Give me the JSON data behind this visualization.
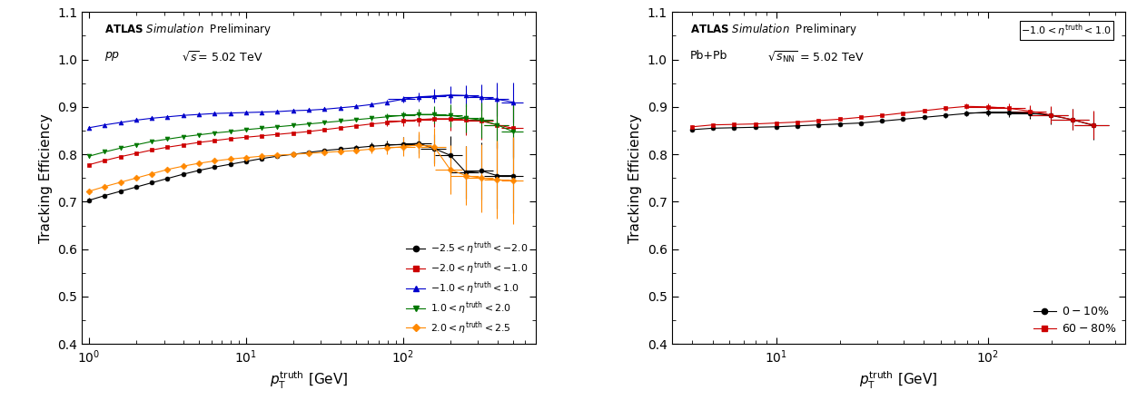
{
  "left_panel": {
    "series": [
      {
        "label": "-2.5 < $\\eta^{\\mathrm{truth}}$ < -2.0",
        "color": "#000000",
        "marker": "o",
        "pt": [
          1.0,
          1.26,
          1.585,
          2.0,
          2.51,
          3.16,
          3.98,
          5.01,
          6.31,
          7.94,
          10.0,
          12.59,
          15.85,
          19.95,
          25.12,
          31.62,
          39.81,
          50.12,
          63.1,
          79.43,
          100.0,
          125.9,
          158.5,
          199.5,
          251.2,
          316.2,
          398.1,
          501.2
        ],
        "eff": [
          0.703,
          0.713,
          0.722,
          0.731,
          0.74,
          0.749,
          0.758,
          0.766,
          0.773,
          0.779,
          0.785,
          0.791,
          0.796,
          0.8,
          0.804,
          0.808,
          0.811,
          0.814,
          0.817,
          0.819,
          0.821,
          0.823,
          0.812,
          0.798,
          0.762,
          0.765,
          0.755,
          0.755
        ],
        "xerr": [
          0.0,
          0.0,
          0.0,
          0.0,
          0.0,
          0.0,
          0.0,
          0.0,
          0.0,
          0.0,
          0.0,
          0.0,
          0.0,
          0.0,
          0.0,
          0.0,
          0.0,
          0.0,
          0.0,
          0.0,
          20.0,
          25.0,
          30.0,
          40.0,
          50.0,
          60.0,
          70.0,
          80.0
        ],
        "yerr": [
          0.005,
          0.004,
          0.004,
          0.003,
          0.003,
          0.003,
          0.003,
          0.003,
          0.003,
          0.003,
          0.003,
          0.003,
          0.003,
          0.003,
          0.003,
          0.004,
          0.005,
          0.006,
          0.008,
          0.01,
          0.015,
          0.02,
          0.03,
          0.04,
          0.055,
          0.06,
          0.07,
          0.08
        ]
      },
      {
        "label": "-2.0 < $\\eta^{\\mathrm{truth}}$ < -1.0",
        "color": "#cc0000",
        "marker": "s",
        "pt": [
          1.0,
          1.26,
          1.585,
          2.0,
          2.51,
          3.16,
          3.98,
          5.01,
          6.31,
          7.94,
          10.0,
          12.59,
          15.85,
          19.95,
          25.12,
          31.62,
          39.81,
          50.12,
          63.1,
          79.43,
          100.0,
          125.9,
          158.5,
          199.5,
          251.2,
          316.2,
          398.1,
          501.2
        ],
        "eff": [
          0.778,
          0.787,
          0.795,
          0.802,
          0.809,
          0.815,
          0.82,
          0.825,
          0.829,
          0.833,
          0.836,
          0.839,
          0.842,
          0.845,
          0.848,
          0.852,
          0.856,
          0.86,
          0.864,
          0.867,
          0.87,
          0.873,
          0.875,
          0.875,
          0.872,
          0.87,
          0.862,
          0.855
        ],
        "xerr": [
          0.0,
          0.0,
          0.0,
          0.0,
          0.0,
          0.0,
          0.0,
          0.0,
          0.0,
          0.0,
          0.0,
          0.0,
          0.0,
          0.0,
          0.0,
          0.0,
          0.0,
          0.0,
          0.0,
          0.0,
          20.0,
          25.0,
          30.0,
          40.0,
          50.0,
          60.0,
          70.0,
          80.0
        ],
        "yerr": [
          0.004,
          0.003,
          0.003,
          0.002,
          0.002,
          0.002,
          0.002,
          0.002,
          0.002,
          0.002,
          0.002,
          0.002,
          0.002,
          0.002,
          0.002,
          0.003,
          0.003,
          0.004,
          0.005,
          0.007,
          0.01,
          0.014,
          0.018,
          0.025,
          0.032,
          0.04,
          0.05,
          0.06
        ]
      },
      {
        "label": "-1.0 < $\\eta^{\\mathrm{truth}}$ < 1.0",
        "color": "#0000cc",
        "marker": "^",
        "pt": [
          1.0,
          1.26,
          1.585,
          2.0,
          2.51,
          3.16,
          3.98,
          5.01,
          6.31,
          7.94,
          10.0,
          12.59,
          15.85,
          19.95,
          25.12,
          31.62,
          39.81,
          50.12,
          63.1,
          79.43,
          100.0,
          125.9,
          158.5,
          199.5,
          251.2,
          316.2,
          398.1,
          501.2
        ],
        "eff": [
          0.856,
          0.862,
          0.867,
          0.872,
          0.876,
          0.879,
          0.882,
          0.884,
          0.886,
          0.887,
          0.888,
          0.889,
          0.89,
          0.892,
          0.893,
          0.895,
          0.898,
          0.901,
          0.905,
          0.91,
          0.916,
          0.921,
          0.923,
          0.925,
          0.924,
          0.92,
          0.916,
          0.91
        ],
        "xerr": [
          0.0,
          0.0,
          0.0,
          0.0,
          0.0,
          0.0,
          0.0,
          0.0,
          0.0,
          0.0,
          0.0,
          0.0,
          0.0,
          0.0,
          0.0,
          0.0,
          0.0,
          0.0,
          0.0,
          0.0,
          20.0,
          25.0,
          30.0,
          40.0,
          50.0,
          60.0,
          70.0,
          80.0
        ],
        "yerr": [
          0.003,
          0.002,
          0.002,
          0.002,
          0.001,
          0.001,
          0.001,
          0.001,
          0.001,
          0.001,
          0.001,
          0.001,
          0.001,
          0.001,
          0.001,
          0.002,
          0.002,
          0.003,
          0.004,
          0.005,
          0.007,
          0.01,
          0.014,
          0.018,
          0.022,
          0.028,
          0.035,
          0.042
        ]
      },
      {
        "label": "1.0 < $\\eta^{\\mathrm{truth}}$ < 2.0",
        "color": "#007700",
        "marker": "v",
        "pt": [
          1.0,
          1.26,
          1.585,
          2.0,
          2.51,
          3.16,
          3.98,
          5.01,
          6.31,
          7.94,
          10.0,
          12.59,
          15.85,
          19.95,
          25.12,
          31.62,
          39.81,
          50.12,
          63.1,
          79.43,
          100.0,
          125.9,
          158.5,
          199.5,
          251.2,
          316.2,
          398.1,
          501.2
        ],
        "eff": [
          0.796,
          0.805,
          0.813,
          0.82,
          0.827,
          0.832,
          0.837,
          0.841,
          0.845,
          0.848,
          0.852,
          0.855,
          0.858,
          0.861,
          0.864,
          0.867,
          0.87,
          0.873,
          0.876,
          0.879,
          0.882,
          0.884,
          0.884,
          0.882,
          0.877,
          0.872,
          0.862,
          0.848
        ],
        "xerr": [
          0.0,
          0.0,
          0.0,
          0.0,
          0.0,
          0.0,
          0.0,
          0.0,
          0.0,
          0.0,
          0.0,
          0.0,
          0.0,
          0.0,
          0.0,
          0.0,
          0.0,
          0.0,
          0.0,
          0.0,
          20.0,
          25.0,
          30.0,
          40.0,
          50.0,
          60.0,
          70.0,
          80.0
        ],
        "yerr": [
          0.004,
          0.003,
          0.003,
          0.002,
          0.002,
          0.002,
          0.002,
          0.002,
          0.002,
          0.002,
          0.002,
          0.002,
          0.002,
          0.002,
          0.002,
          0.003,
          0.003,
          0.004,
          0.005,
          0.007,
          0.009,
          0.012,
          0.018,
          0.024,
          0.03,
          0.038,
          0.048,
          0.058
        ]
      },
      {
        "label": "2.0 < $\\eta^{\\mathrm{truth}}$ < 2.5",
        "color": "#ff8800",
        "marker": "D",
        "pt": [
          1.0,
          1.26,
          1.585,
          2.0,
          2.51,
          3.16,
          3.98,
          5.01,
          6.31,
          7.94,
          10.0,
          12.59,
          15.85,
          19.95,
          25.12,
          31.62,
          39.81,
          50.12,
          63.1,
          79.43,
          100.0,
          125.9,
          158.5,
          199.5,
          251.2,
          316.2,
          398.1,
          501.2
        ],
        "eff": [
          0.722,
          0.732,
          0.741,
          0.75,
          0.759,
          0.768,
          0.775,
          0.781,
          0.786,
          0.79,
          0.793,
          0.796,
          0.798,
          0.8,
          0.802,
          0.804,
          0.806,
          0.808,
          0.811,
          0.813,
          0.816,
          0.82,
          0.815,
          0.768,
          0.755,
          0.75,
          0.746,
          0.745
        ],
        "xerr": [
          0.0,
          0.0,
          0.0,
          0.0,
          0.0,
          0.0,
          0.0,
          0.0,
          0.0,
          0.0,
          0.0,
          0.0,
          0.0,
          0.0,
          0.0,
          0.0,
          0.0,
          0.0,
          0.0,
          0.0,
          20.0,
          25.0,
          30.0,
          40.0,
          50.0,
          60.0,
          70.0,
          80.0
        ],
        "yerr": [
          0.005,
          0.004,
          0.004,
          0.003,
          0.003,
          0.003,
          0.003,
          0.003,
          0.003,
          0.003,
          0.003,
          0.003,
          0.003,
          0.003,
          0.003,
          0.004,
          0.005,
          0.006,
          0.009,
          0.012,
          0.02,
          0.028,
          0.04,
          0.052,
          0.062,
          0.072,
          0.082,
          0.092
        ]
      }
    ],
    "xlim": [
      0.9,
      700
    ],
    "ylim": [
      0.4,
      1.1
    ],
    "yticks": [
      0.4,
      0.5,
      0.6,
      0.7,
      0.8,
      0.9,
      1.0,
      1.1
    ],
    "xlabel": "$p_{\\mathrm{T}}^{\\mathrm{truth}}$ [GeV]",
    "ylabel": "Tracking Efficiency"
  },
  "right_panel": {
    "series": [
      {
        "label": "0 - 10%",
        "color": "#000000",
        "marker": "o",
        "pt": [
          4.0,
          5.01,
          6.31,
          7.94,
          10.0,
          12.59,
          15.85,
          19.95,
          25.12,
          31.62,
          39.81,
          50.12,
          63.1,
          79.43,
          100.0,
          125.9,
          158.5,
          199.5,
          251.2,
          316.2
        ],
        "eff": [
          0.852,
          0.855,
          0.856,
          0.857,
          0.858,
          0.86,
          0.862,
          0.864,
          0.866,
          0.87,
          0.874,
          0.878,
          0.882,
          0.886,
          0.889,
          0.889,
          0.887,
          0.882,
          0.873,
          0.861
        ],
        "xerr": [
          0.0,
          0.0,
          0.0,
          0.0,
          0.0,
          0.0,
          0.0,
          0.0,
          0.0,
          0.0,
          0.0,
          0.0,
          0.0,
          0.0,
          20.0,
          25.0,
          30.0,
          40.0,
          50.0,
          60.0
        ],
        "yerr": [
          0.004,
          0.003,
          0.003,
          0.003,
          0.003,
          0.002,
          0.002,
          0.002,
          0.002,
          0.003,
          0.003,
          0.004,
          0.005,
          0.006,
          0.008,
          0.01,
          0.013,
          0.018,
          0.022,
          0.03
        ]
      },
      {
        "label": "60 - 80%",
        "color": "#cc0000",
        "marker": "s",
        "pt": [
          4.0,
          5.01,
          6.31,
          7.94,
          10.0,
          12.59,
          15.85,
          19.95,
          25.12,
          31.62,
          39.81,
          50.12,
          63.1,
          79.43,
          100.0,
          125.9,
          158.5,
          199.5,
          251.2,
          316.2
        ],
        "eff": [
          0.858,
          0.862,
          0.863,
          0.864,
          0.866,
          0.868,
          0.871,
          0.874,
          0.878,
          0.882,
          0.887,
          0.892,
          0.897,
          0.901,
          0.9,
          0.897,
          0.891,
          0.883,
          0.873,
          0.862
        ],
        "xerr": [
          0.0,
          0.0,
          0.0,
          0.0,
          0.0,
          0.0,
          0.0,
          0.0,
          0.0,
          0.0,
          0.0,
          0.0,
          0.0,
          0.0,
          20.0,
          25.0,
          30.0,
          40.0,
          50.0,
          60.0
        ],
        "yerr": [
          0.004,
          0.003,
          0.003,
          0.003,
          0.003,
          0.002,
          0.002,
          0.002,
          0.002,
          0.003,
          0.003,
          0.004,
          0.005,
          0.006,
          0.007,
          0.01,
          0.013,
          0.018,
          0.022,
          0.03
        ]
      }
    ],
    "xlim": [
      3.2,
      450
    ],
    "ylim": [
      0.4,
      1.1
    ],
    "yticks": [
      0.4,
      0.5,
      0.6,
      0.7,
      0.8,
      0.9,
      1.0,
      1.1
    ],
    "xlabel": "$p_{\\mathrm{T}}^{\\mathrm{truth}}$ [GeV]",
    "ylabel": "Tracking Efficiency"
  }
}
